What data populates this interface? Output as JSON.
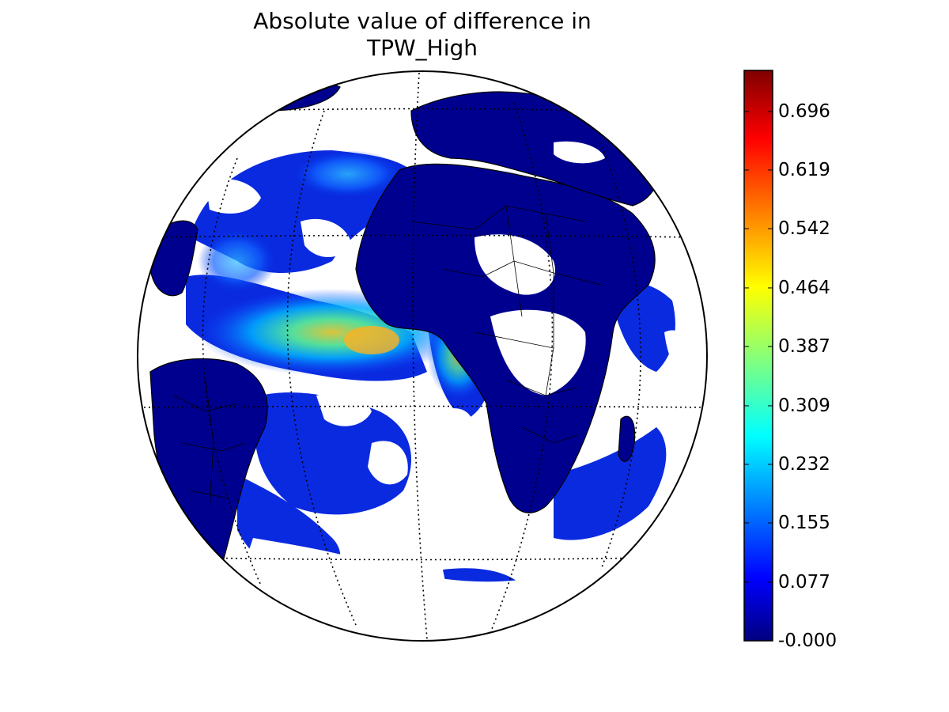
{
  "title": {
    "line1": "Absolute value of difference in",
    "line2": "TPW_High"
  },
  "colorbar": {
    "colormap": "jet",
    "min": 0.0,
    "max": 0.75,
    "tick_labels": [
      "-0.000",
      "0.077",
      "0.155",
      "0.232",
      "0.309",
      "0.387",
      "0.464",
      "0.542",
      "0.619",
      "0.696"
    ],
    "tick_values": [
      0.0,
      0.077,
      0.155,
      0.232,
      0.309,
      0.387,
      0.464,
      0.542,
      0.619,
      0.696
    ],
    "colors": {
      "low": "#00007f",
      "mid_low": "#0000ff",
      "mid": "#00ffff",
      "mid_high": "#ffff00",
      "high": "#ff0000",
      "top": "#7f0000"
    }
  },
  "map": {
    "projection": "orthographic",
    "grid": "dotted",
    "background_color": "#ffffff",
    "dominant_fill": "#00008f"
  }
}
